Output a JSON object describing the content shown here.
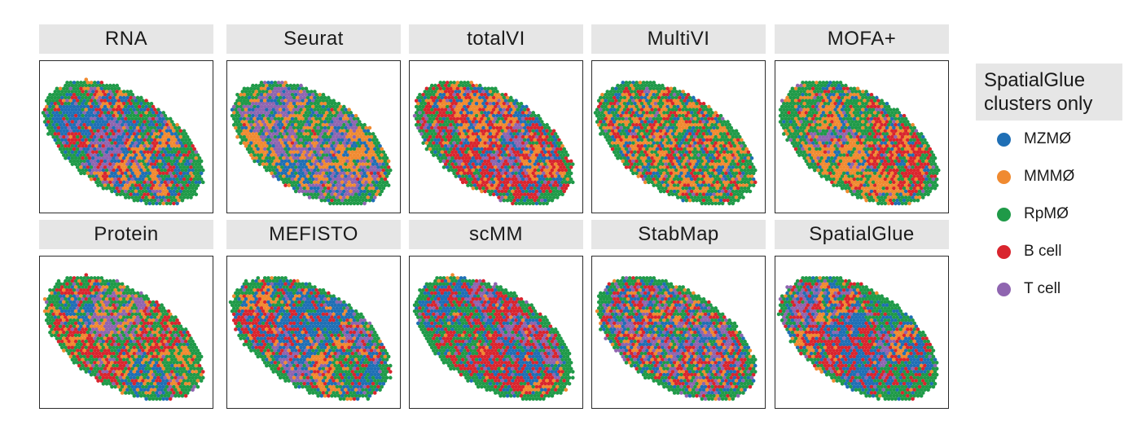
{
  "panels": [
    {
      "title": "RNA",
      "mix": [
        0.42,
        0.06,
        0.12,
        0.28,
        0.12
      ],
      "blobScale": 1.2
    },
    {
      "title": "Seurat",
      "mix": [
        0.3,
        0.34,
        0.24,
        0.02,
        0.1
      ],
      "blobScale": 1.0
    },
    {
      "title": "totalVI",
      "mix": [
        0.28,
        0.08,
        0.1,
        0.44,
        0.1
      ],
      "blobScale": 0.9
    },
    {
      "title": "MultiVI",
      "mix": [
        0.14,
        0.3,
        0.32,
        0.18,
        0.06
      ],
      "blobScale": 0.35
    },
    {
      "title": "MOFA+",
      "mix": [
        0.14,
        0.34,
        0.3,
        0.16,
        0.06
      ],
      "blobScale": 1.0
    },
    {
      "title": "Protein",
      "mix": [
        0.06,
        0.34,
        0.42,
        0.08,
        0.1
      ],
      "blobScale": 1.1
    },
    {
      "title": "MEFISTO",
      "mix": [
        0.36,
        0.14,
        0.12,
        0.28,
        0.1
      ],
      "blobScale": 1.1
    },
    {
      "title": "scMM",
      "mix": [
        0.26,
        0.04,
        0.16,
        0.46,
        0.08
      ],
      "blobScale": 1.0
    },
    {
      "title": "StabMap",
      "mix": [
        0.22,
        0.16,
        0.18,
        0.22,
        0.22
      ],
      "blobScale": 0.35
    },
    {
      "title": "SpatialGlue",
      "mix": [
        0.34,
        0.06,
        0.14,
        0.36,
        0.1
      ],
      "blobScale": 1.0
    }
  ],
  "legend": {
    "title_line1": "SpatialGlue",
    "title_line2": "clusters only",
    "items": [
      {
        "label": "MZMØ",
        "color": "#1f6fb5"
      },
      {
        "label": "MMMØ",
        "color": "#f08a30"
      },
      {
        "label": "RpMØ",
        "color": "#1f9a48"
      },
      {
        "label": "B cell",
        "color": "#d9252e"
      },
      {
        "label": "T cell",
        "color": "#8f65b0"
      }
    ]
  }
}
